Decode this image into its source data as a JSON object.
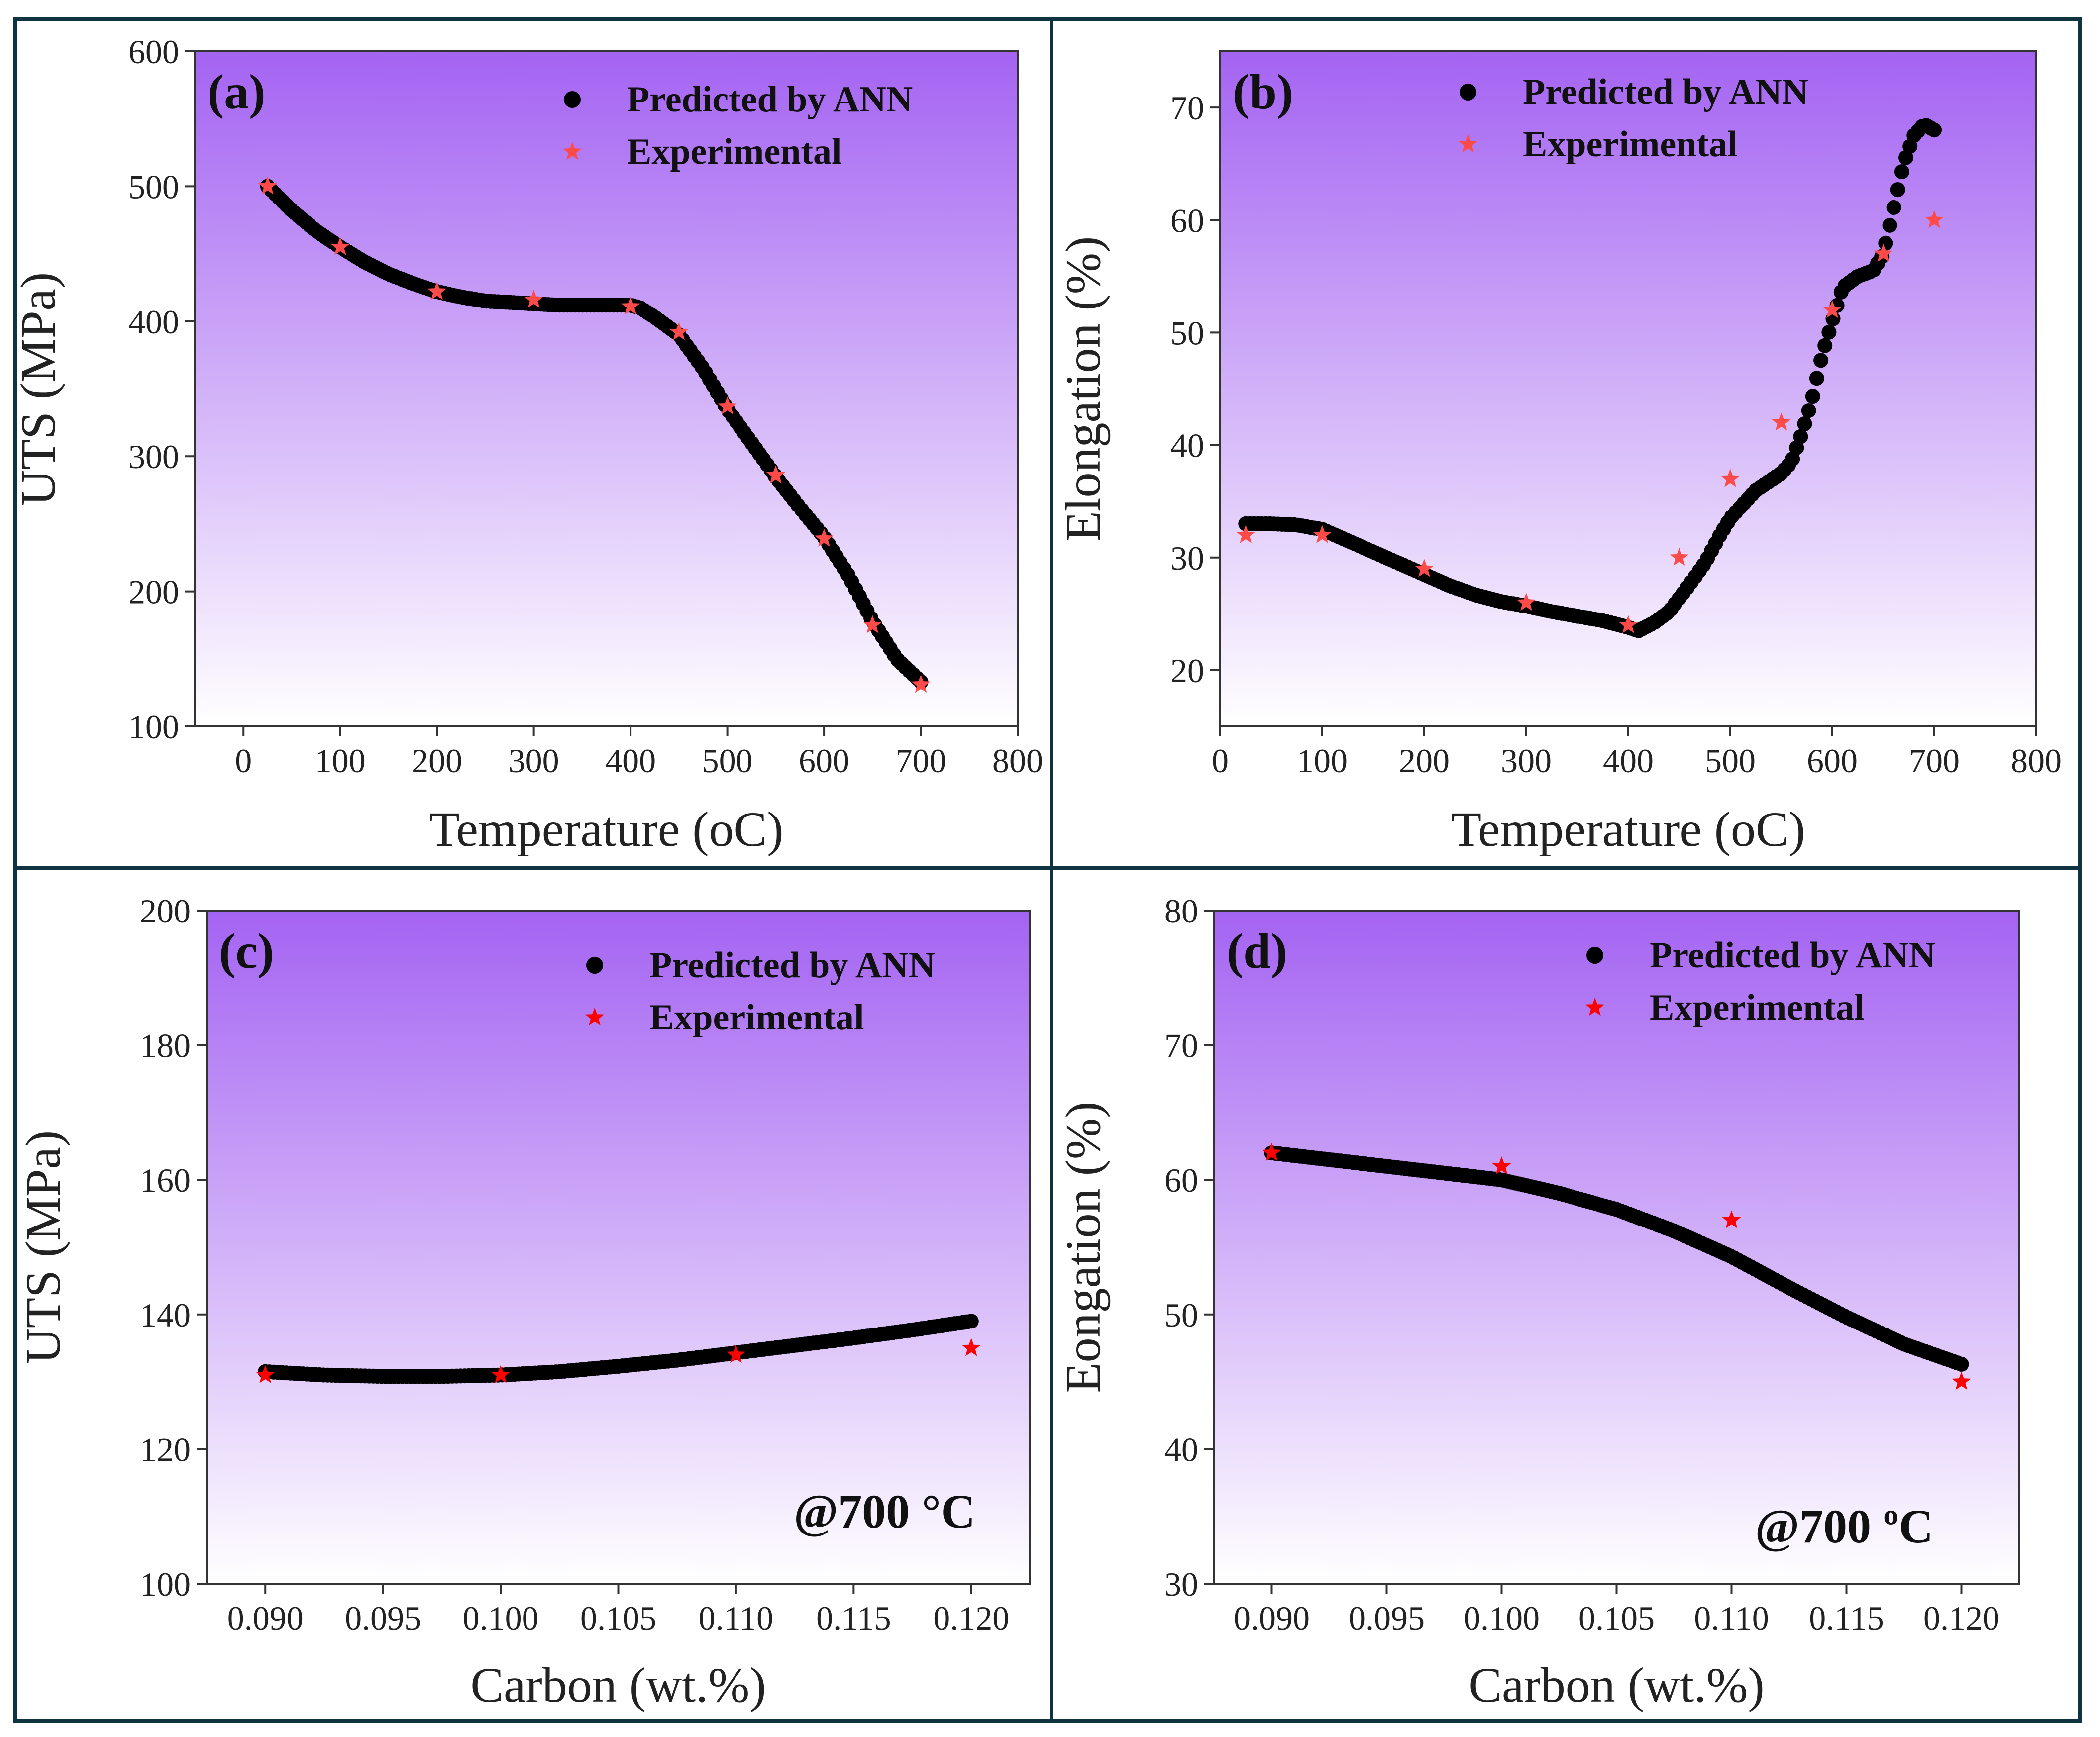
{
  "colors": {
    "frame": "#0f3341",
    "gradient_top": "#a463f2",
    "gradient_bottom": "#ffffff",
    "pred": "#000000",
    "exp_pink": "#ff4a4a",
    "exp_red": "#ff0000"
  },
  "chart_data": [
    {
      "panel": "(a)",
      "type": "scatter",
      "xlabel": "Temperature (oC)",
      "ylabel": "UTS (MPa)",
      "xlim": [
        -50,
        800
      ],
      "ylim": [
        100,
        600
      ],
      "xticks": [
        0,
        100,
        200,
        300,
        400,
        500,
        600,
        700,
        800
      ],
      "yticks": [
        100,
        200,
        300,
        400,
        500,
        600
      ],
      "legend": [
        "Predicted by ANN",
        "Experimental"
      ],
      "legend_position": "top-right",
      "series": [
        {
          "name": "Predicted by ANN",
          "marker": "circle",
          "x": [
            25,
            50,
            75,
            100,
            125,
            150,
            175,
            200,
            225,
            250,
            275,
            300,
            325,
            350,
            375,
            400,
            410,
            425,
            450,
            475,
            500,
            525,
            550,
            575,
            600,
            625,
            650,
            675,
            700
          ],
          "y": [
            500,
            482,
            467,
            455,
            444,
            435,
            428,
            422,
            418,
            415,
            414,
            413,
            412,
            412,
            412,
            412,
            410,
            403,
            390,
            365,
            335,
            310,
            285,
            262,
            240,
            212,
            178,
            150,
            133
          ]
        },
        {
          "name": "Experimental",
          "marker": "star",
          "x": [
            25,
            100,
            200,
            300,
            400,
            450,
            500,
            550,
            600,
            650,
            700
          ],
          "y": [
            500,
            455,
            422,
            416,
            411,
            392,
            337,
            286,
            239,
            175,
            131
          ]
        }
      ]
    },
    {
      "panel": "(b)",
      "type": "scatter",
      "xlabel": "Temperature (oC)",
      "ylabel": "Elongation (%)",
      "xlim": [
        0,
        800
      ],
      "ylim": [
        15,
        75
      ],
      "xticks": [
        0,
        100,
        200,
        300,
        400,
        500,
        600,
        700,
        800
      ],
      "yticks": [
        20,
        30,
        40,
        50,
        60,
        70
      ],
      "legend": [
        "Predicted by ANN",
        "Experimental"
      ],
      "legend_position": "top-right",
      "series": [
        {
          "name": "Predicted by ANN",
          "marker": "circle",
          "x": [
            25,
            50,
            75,
            100,
            125,
            150,
            175,
            200,
            225,
            250,
            275,
            300,
            325,
            350,
            375,
            400,
            410,
            425,
            440,
            450,
            460,
            475,
            490,
            500,
            525,
            550,
            560,
            570,
            580,
            590,
            600,
            610,
            625,
            640,
            650,
            660,
            670,
            680,
            690,
            700
          ],
          "y": [
            33,
            33,
            32.9,
            32.5,
            31.5,
            30.5,
            29.5,
            28.5,
            27.5,
            26.7,
            26.1,
            25.7,
            25.2,
            24.8,
            24.4,
            23.8,
            23.5,
            24.2,
            25.2,
            26.4,
            27.6,
            29.5,
            32,
            33.5,
            36,
            37.5,
            38.5,
            41,
            44,
            48,
            51,
            54,
            55,
            55.5,
            57,
            61,
            65,
            67.5,
            68.5,
            68
          ]
        },
        {
          "name": "Experimental",
          "marker": "star",
          "x": [
            25,
            100,
            200,
            300,
            400,
            450,
            500,
            550,
            600,
            650,
            700
          ],
          "y": [
            32,
            32,
            29,
            26,
            24,
            30,
            37,
            42,
            52,
            57,
            60
          ]
        }
      ]
    },
    {
      "panel": "(c)",
      "type": "scatter",
      "xlabel": "Carbon (wt.%)",
      "ylabel": "UTS (MPa)",
      "xlim": [
        0.0875,
        0.1225
      ],
      "ylim": [
        100,
        200
      ],
      "xticks": [
        "0.090",
        "0.095",
        "0.100",
        "0.105",
        "0.110",
        "0.115",
        "0.120"
      ],
      "yticks": [
        100,
        120,
        140,
        160,
        180,
        200
      ],
      "legend": [
        "Predicted by ANN",
        "Experimental"
      ],
      "legend_position": "top-right",
      "annotation": "@700 °C",
      "series": [
        {
          "name": "Predicted by ANN",
          "marker": "circle",
          "x": [
            0.09,
            0.0925,
            0.095,
            0.0975,
            0.1,
            0.1025,
            0.105,
            0.1075,
            0.11,
            0.1125,
            0.115,
            0.1175,
            0.12
          ],
          "y": [
            131.5,
            131,
            130.8,
            130.8,
            131,
            131.5,
            132.3,
            133.2,
            134.3,
            135.4,
            136.5,
            137.7,
            139
          ]
        },
        {
          "name": "Experimental",
          "marker": "star",
          "x": [
            0.09,
            0.1,
            0.11,
            0.12
          ],
          "y": [
            131,
            131,
            134,
            135
          ]
        }
      ]
    },
    {
      "panel": "(d)",
      "type": "scatter",
      "xlabel": "Carbon (wt.%)",
      "ylabel": "Eongation (%)",
      "xlim": [
        0.0875,
        0.1225
      ],
      "ylim": [
        30,
        80
      ],
      "xticks": [
        "0.090",
        "0.095",
        "0.100",
        "0.105",
        "0.110",
        "0.115",
        "0.120"
      ],
      "yticks": [
        30,
        40,
        50,
        60,
        70,
        80
      ],
      "legend": [
        "Predicted by ANN",
        "Experimental"
      ],
      "legend_position": "top-right",
      "annotation": "@700 ºC",
      "series": [
        {
          "name": "Predicted by ANN",
          "marker": "circle",
          "x": [
            0.09,
            0.0925,
            0.095,
            0.0975,
            0.1,
            0.1025,
            0.105,
            0.1075,
            0.11,
            0.1125,
            0.115,
            0.1175,
            0.12
          ],
          "y": [
            62,
            61.5,
            61,
            60.5,
            60,
            59,
            57.8,
            56.2,
            54.3,
            52,
            49.8,
            47.8,
            46.3
          ]
        },
        {
          "name": "Experimental",
          "marker": "star",
          "x": [
            0.09,
            0.1,
            0.11,
            0.12
          ],
          "y": [
            62,
            61,
            57,
            45
          ]
        }
      ]
    }
  ]
}
